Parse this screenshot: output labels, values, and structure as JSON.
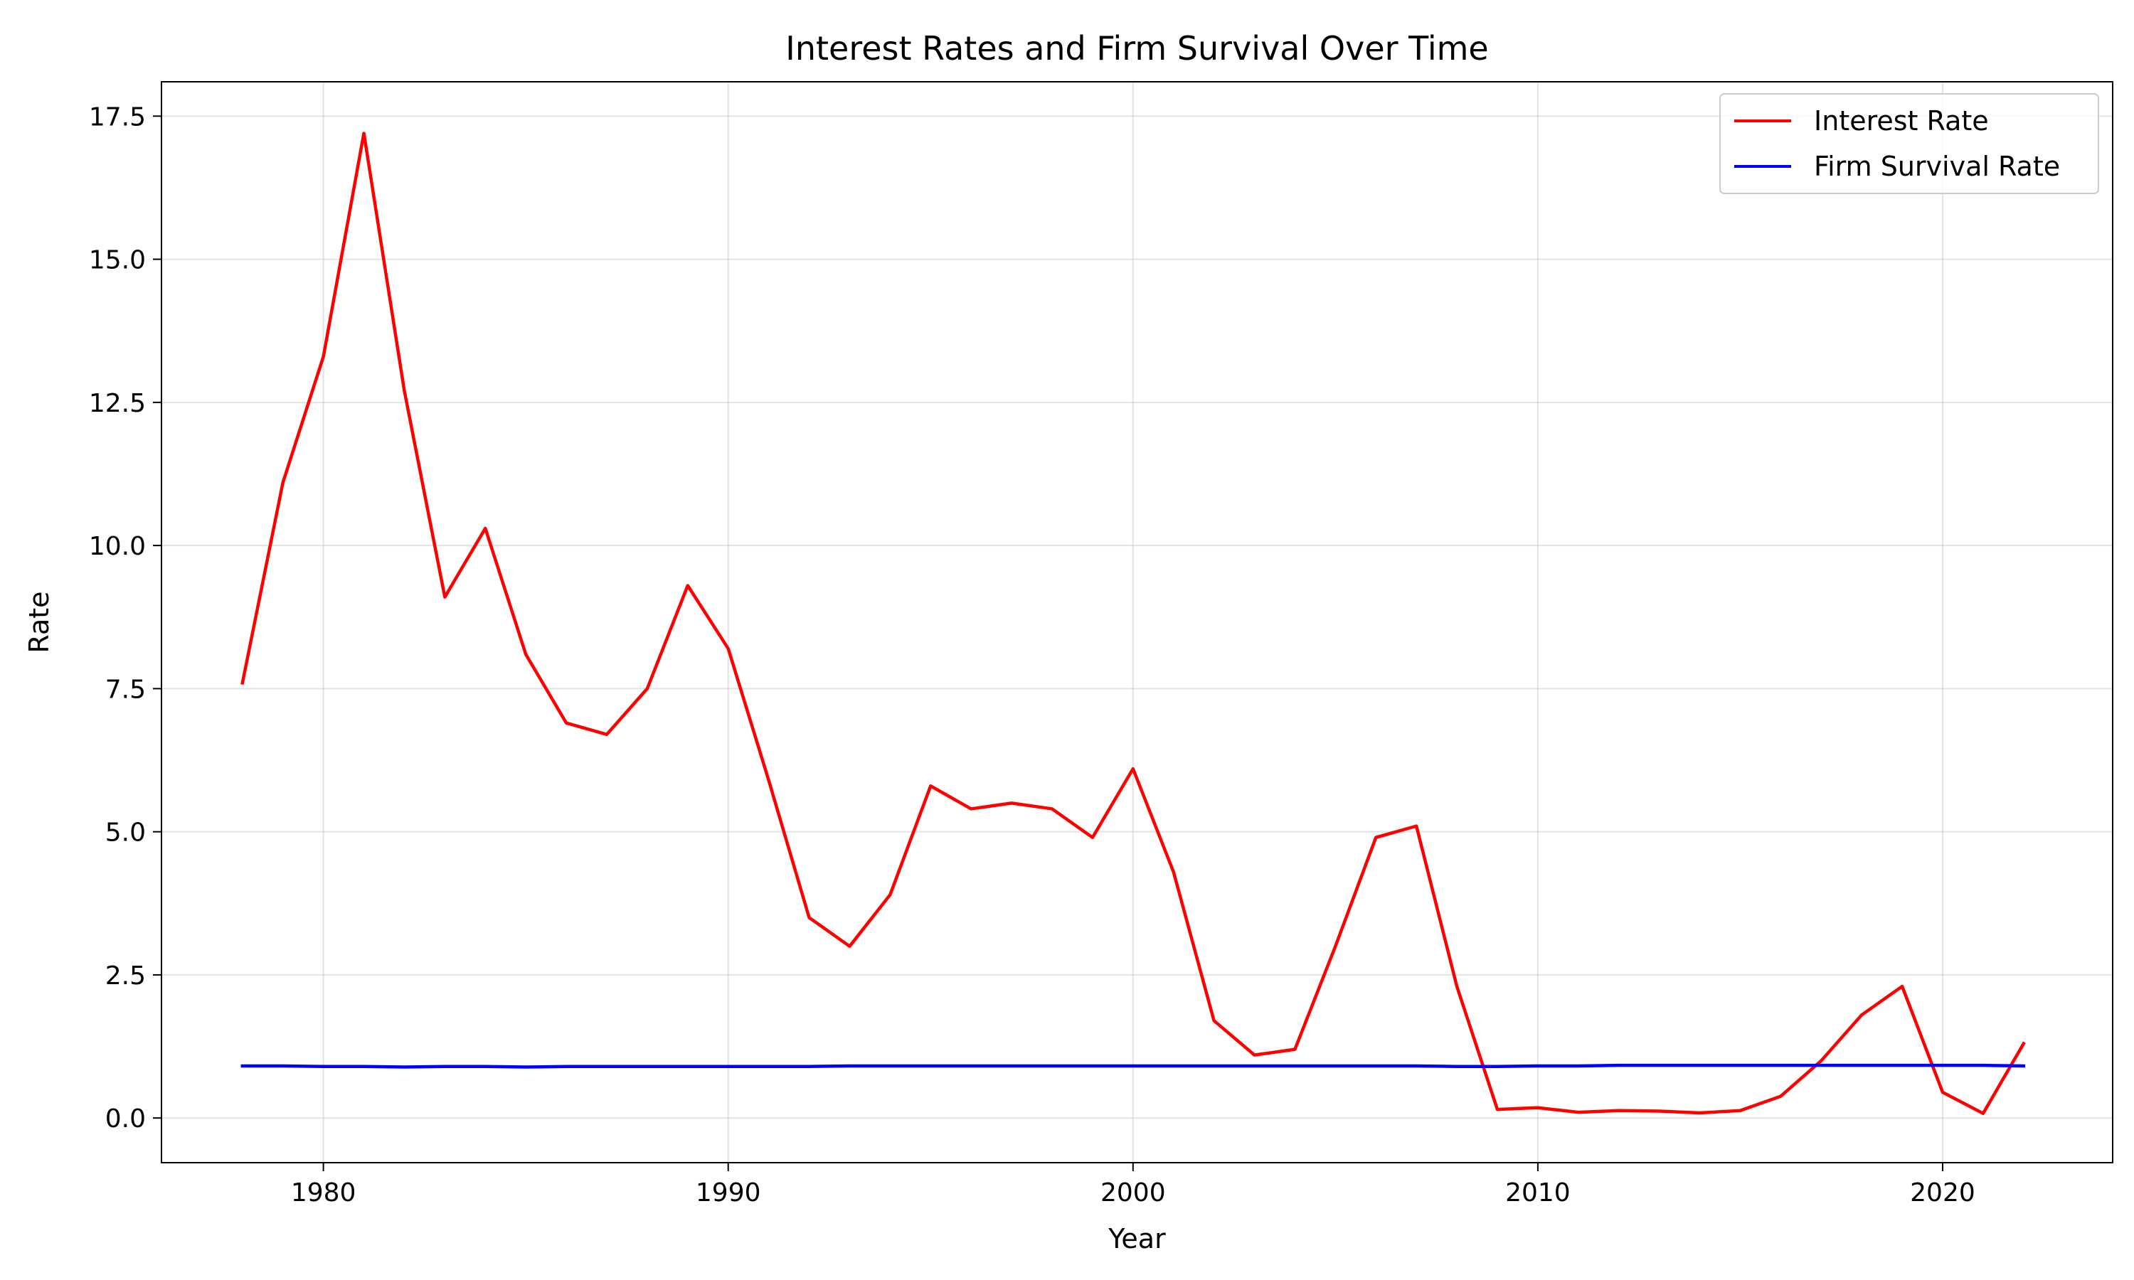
{
  "chart_data": {
    "type": "line",
    "title": "Interest Rates and Firm Survival Over Time",
    "xlabel": "Year",
    "ylabel": "Rate",
    "xlim": [
      1976,
      2024.2
    ],
    "ylim": [
      -0.78,
      18.1
    ],
    "x_ticks": [
      1980,
      1990,
      2000,
      2010,
      2020
    ],
    "y_ticks": [
      0.0,
      2.5,
      5.0,
      7.5,
      10.0,
      12.5,
      15.0,
      17.5
    ],
    "y_tick_labels": [
      "0.0",
      "2.5",
      "5.0",
      "7.5",
      "10.0",
      "12.5",
      "15.0",
      "17.5"
    ],
    "grid": true,
    "legend": "top-right",
    "x": [
      1978,
      1979,
      1980,
      1981,
      1982,
      1983,
      1984,
      1985,
      1986,
      1987,
      1988,
      1989,
      1990,
      1991,
      1992,
      1993,
      1994,
      1995,
      1996,
      1997,
      1998,
      1999,
      2000,
      2001,
      2002,
      2003,
      2004,
      2005,
      2006,
      2007,
      2008,
      2009,
      2010,
      2011,
      2012,
      2013,
      2014,
      2015,
      2016,
      2017,
      2018,
      2019,
      2020,
      2021,
      2022
    ],
    "series": [
      {
        "name": "Interest Rate",
        "color": "#ff0000",
        "values": [
          7.6,
          11.1,
          13.3,
          17.2,
          12.7,
          9.1,
          10.3,
          8.1,
          6.9,
          6.7,
          7.5,
          9.3,
          8.2,
          5.9,
          3.5,
          3.0,
          3.9,
          5.8,
          5.4,
          5.5,
          5.4,
          4.9,
          6.1,
          4.3,
          1.7,
          1.1,
          1.2,
          3.0,
          4.9,
          5.1,
          2.3,
          0.15,
          0.18,
          0.1,
          0.13,
          0.12,
          0.09,
          0.13,
          0.38,
          1.0,
          1.8,
          2.3,
          0.45,
          0.08,
          1.3
        ]
      },
      {
        "name": "Firm Survival Rate",
        "color": "#0000ff",
        "values": [
          0.91,
          0.91,
          0.9,
          0.9,
          0.89,
          0.9,
          0.9,
          0.89,
          0.9,
          0.9,
          0.9,
          0.9,
          0.9,
          0.9,
          0.9,
          0.91,
          0.91,
          0.91,
          0.91,
          0.91,
          0.91,
          0.91,
          0.91,
          0.91,
          0.91,
          0.91,
          0.91,
          0.91,
          0.91,
          0.91,
          0.9,
          0.9,
          0.91,
          0.91,
          0.92,
          0.92,
          0.92,
          0.92,
          0.92,
          0.92,
          0.92,
          0.92,
          0.92,
          0.92,
          0.91
        ]
      }
    ]
  }
}
